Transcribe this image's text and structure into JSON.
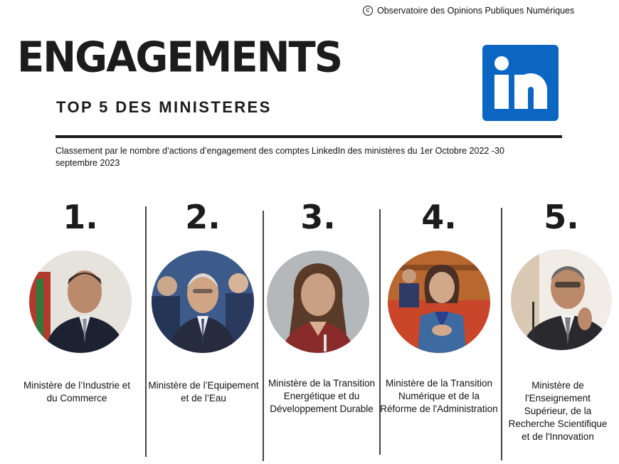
{
  "header": {
    "copyright_text": "Observatoire des Opinions Publiques Numériques",
    "title": "ENGAGEMENTS",
    "subtitle": "TOP 5 DES MINISTERES",
    "description": "Classement par le nombre d’actions d’engagement des comptes LinkedIn des ministères du 1er Octobre 2022 -30 septembre 2023"
  },
  "brand": {
    "logo_icon": "linkedin-logo-icon",
    "color": "#0a66c2"
  },
  "ranking": [
    {
      "rank": "1.",
      "ministry": "Ministère de l’Industrie et du Commerce",
      "photo": "portrait-photo"
    },
    {
      "rank": "2.",
      "ministry": "Ministère de l’Equipement et de l’Eau",
      "photo": "portrait-photo"
    },
    {
      "rank": "3.",
      "ministry": "Ministère de la Transition Energétique et du Développement Durable",
      "photo": "portrait-photo"
    },
    {
      "rank": "4.",
      "ministry": "Ministère de la Transition Numérique et de la Réforme de l'Administration",
      "photo": "portrait-photo"
    },
    {
      "rank": "5.",
      "ministry": "Ministère de l'Enseignement Supérieur, de la Recherche Scientifique et de l'Innovation",
      "photo": "portrait-photo"
    }
  ]
}
